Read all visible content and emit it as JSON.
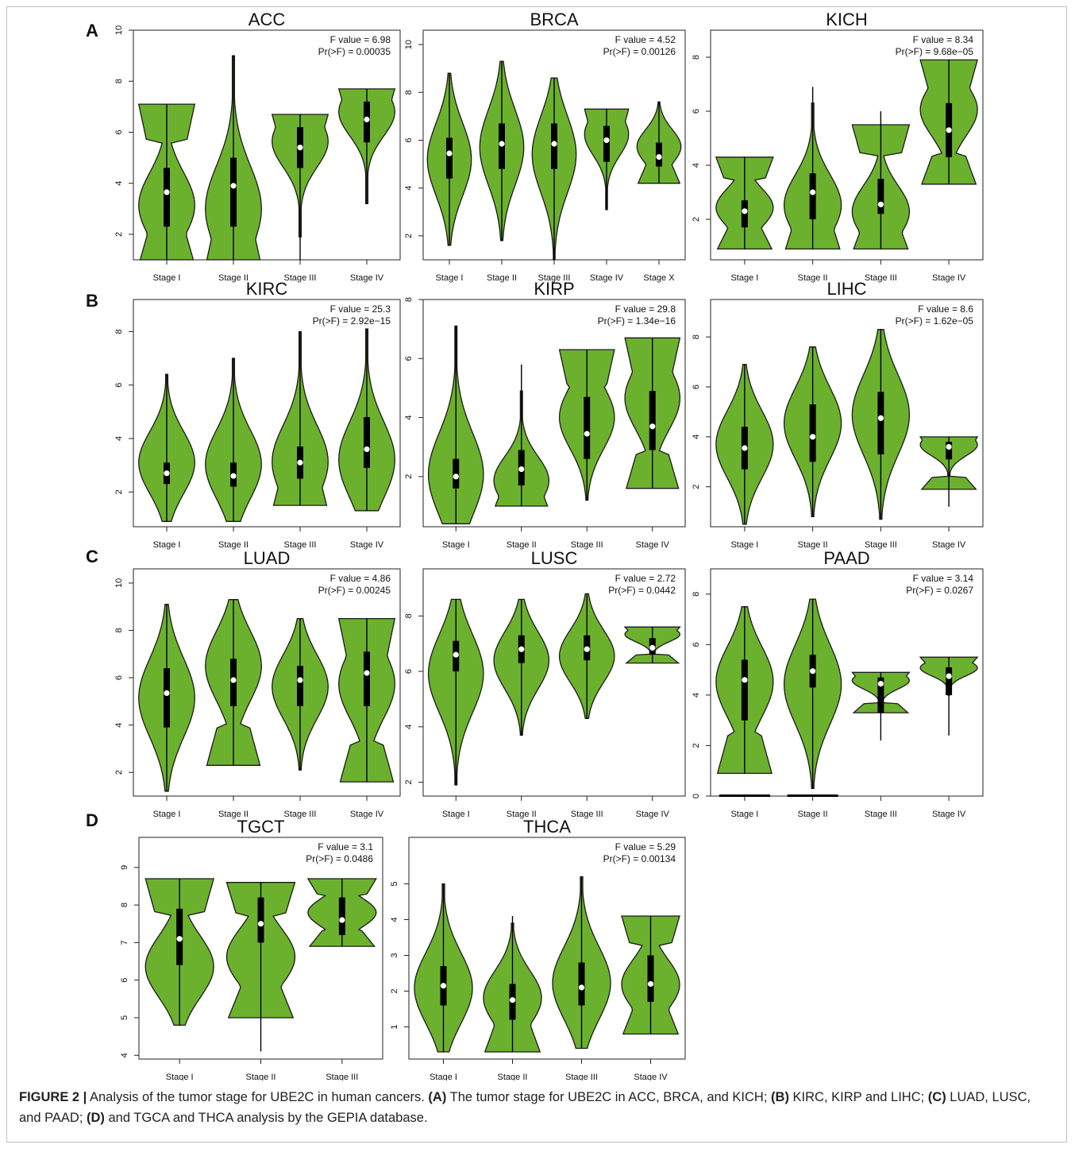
{
  "panel_letters": [
    "A",
    "B",
    "C",
    "D"
  ],
  "caption": {
    "lead": "FIGURE 2 |",
    "text": [
      " Analysis of the tumor stage for UBE2C in human cancers. ",
      "(A)",
      " The tumor stage for UBE2C in ACC, BRCA, and KICH; ",
      "(B)",
      " KIRC, KIRP and LIHC; ",
      "(C)",
      " LUAD, LUSC, and PAAD; ",
      "(D)",
      " and TGCA and THCA analysis by the GEPIA database."
    ]
  },
  "colors": {
    "violin_fill": "#6cb12e",
    "violin_stroke": "#1a1a1a",
    "box": "#000000",
    "median": "#ffffff"
  },
  "chart_data": [
    {
      "type": "violin",
      "title": "ACC",
      "f_text": "F value = 6.98",
      "p_text": "Pr(>F) = 0.00035",
      "ylim": [
        1,
        10
      ],
      "yticks": [
        2,
        4,
        6,
        8,
        10
      ],
      "categories": [
        "Stage I",
        "Stage II",
        "Stage III",
        "Stage IV"
      ],
      "violins": [
        {
          "min": 1.0,
          "max": 7.1,
          "q1": 2.3,
          "q3": 4.6,
          "median": 3.65,
          "flat_top": true,
          "flat_bottom": true,
          "peak": 0.35,
          "wmin": 1.0,
          "wmax": 7.1
        },
        {
          "min": 1.0,
          "max": 9.0,
          "q1": 2.3,
          "q3": 5.0,
          "median": 3.9,
          "flat_top": false,
          "flat_bottom": true,
          "peak": 0.25,
          "wmin": 1.0,
          "wmax": 9.0
        },
        {
          "min": 1.0,
          "max": 6.7,
          "q1": 4.6,
          "q3": 6.2,
          "median": 5.4,
          "flat_top": true,
          "flat_bottom": false,
          "peak": 0.78,
          "wmin": 1.9,
          "wmax": 6.7
        },
        {
          "min": 3.2,
          "max": 7.7,
          "q1": 5.6,
          "q3": 7.2,
          "median": 6.5,
          "flat_top": true,
          "flat_bottom": false,
          "peak": 0.8,
          "wmin": 3.2,
          "wmax": 7.7
        }
      ]
    },
    {
      "type": "violin",
      "title": "BRCA",
      "f_text": "F value = 4.52",
      "p_text": "Pr(>F) = 0.00126",
      "ylim": [
        1,
        10.6
      ],
      "yticks": [
        2,
        4,
        6,
        8,
        10
      ],
      "categories": [
        "Stage I",
        "Stage II",
        "Stage III",
        "Stage IV",
        "Stage X"
      ],
      "violins": [
        {
          "min": 1.6,
          "max": 8.8,
          "q1": 4.4,
          "q3": 6.1,
          "median": 5.45,
          "flat_top": false,
          "flat_bottom": false,
          "peak": 0.5,
          "wmin": 1.6,
          "wmax": 8.8
        },
        {
          "min": 1.8,
          "max": 9.3,
          "q1": 4.8,
          "q3": 6.7,
          "median": 5.85,
          "flat_top": false,
          "flat_bottom": false,
          "peak": 0.52,
          "wmin": 1.8,
          "wmax": 9.3
        },
        {
          "min": 1.0,
          "max": 8.6,
          "q1": 4.8,
          "q3": 6.7,
          "median": 5.85,
          "flat_top": false,
          "flat_bottom": false,
          "peak": 0.58,
          "wmin": 1.0,
          "wmax": 8.6
        },
        {
          "min": 3.1,
          "max": 7.3,
          "q1": 5.1,
          "q3": 6.6,
          "median": 6.0,
          "flat_top": true,
          "flat_bottom": false,
          "peak": 0.75,
          "wmin": 3.1,
          "wmax": 7.3
        },
        {
          "min": 4.2,
          "max": 7.6,
          "q1": 4.9,
          "q3": 5.9,
          "median": 5.3,
          "flat_top": false,
          "flat_bottom": true,
          "peak": 0.45,
          "wmin": 4.2,
          "wmax": 7.6
        }
      ]
    },
    {
      "type": "violin",
      "title": "KICH",
      "f_text": "F value = 8.34",
      "p_text": "Pr(>F) = 9.68e−05",
      "ylim": [
        0.5,
        9
      ],
      "yticks": [
        2,
        4,
        6,
        8
      ],
      "categories": [
        "Stage I",
        "Stage II",
        "Stage III",
        "Stage IV"
      ],
      "violins": [
        {
          "min": 0.9,
          "max": 4.3,
          "q1": 1.7,
          "q3": 2.7,
          "median": 2.3,
          "flat_top": true,
          "flat_bottom": true,
          "peak": 0.45,
          "wmin": 0.9,
          "wmax": 4.3
        },
        {
          "min": 0.9,
          "max": 6.9,
          "q1": 2.0,
          "q3": 3.7,
          "median": 3.0,
          "flat_top": false,
          "flat_bottom": true,
          "peak": 0.3,
          "wmin": 0.9,
          "wmax": 6.3
        },
        {
          "min": 0.9,
          "max": 6.0,
          "q1": 2.2,
          "q3": 3.5,
          "median": 2.55,
          "flat_top": true,
          "flat_bottom": true,
          "peak": 0.3,
          "wmin": 0.9,
          "wmax": 5.5
        },
        {
          "min": 3.3,
          "max": 7.9,
          "q1": 4.3,
          "q3": 6.3,
          "median": 5.3,
          "flat_top": true,
          "flat_bottom": true,
          "peak": 0.6,
          "wmin": 3.3,
          "wmax": 7.9
        }
      ]
    },
    {
      "type": "violin",
      "title": "KIRC",
      "f_text": "F value = 25.3",
      "p_text": "Pr(>F) = 2.92e−15",
      "ylim": [
        0.7,
        9.2
      ],
      "yticks": [
        2,
        4,
        6,
        8
      ],
      "categories": [
        "Stage I",
        "Stage II",
        "Stage III",
        "Stage IV"
      ],
      "violins": [
        {
          "min": 0.9,
          "max": 6.4,
          "q1": 2.3,
          "q3": 3.1,
          "median": 2.7,
          "flat_top": false,
          "flat_bottom": false,
          "peak": 0.4,
          "wmin": 0.9,
          "wmax": 6.4
        },
        {
          "min": 0.9,
          "max": 7.0,
          "q1": 2.2,
          "q3": 3.1,
          "median": 2.6,
          "flat_top": false,
          "flat_bottom": false,
          "peak": 0.35,
          "wmin": 0.9,
          "wmax": 7.0
        },
        {
          "min": 1.5,
          "max": 8.0,
          "q1": 2.5,
          "q3": 3.7,
          "median": 3.1,
          "flat_top": false,
          "flat_bottom": true,
          "peak": 0.25,
          "wmin": 1.5,
          "wmax": 8.0
        },
        {
          "min": 1.3,
          "max": 8.1,
          "q1": 2.9,
          "q3": 4.8,
          "median": 3.6,
          "flat_top": false,
          "flat_bottom": false,
          "peak": 0.28,
          "wmin": 1.3,
          "wmax": 8.1
        }
      ]
    },
    {
      "type": "violin",
      "title": "KIRP",
      "f_text": "F value = 29.8",
      "p_text": "Pr(>F) = 1.34e−16",
      "ylim": [
        0.3,
        8
      ],
      "yticks": [
        2,
        4,
        6,
        8
      ],
      "categories": [
        "Stage I",
        "Stage II",
        "Stage III",
        "Stage IV"
      ],
      "violins": [
        {
          "min": 0.4,
          "max": 7.1,
          "q1": 1.6,
          "q3": 2.6,
          "median": 2.0,
          "flat_top": false,
          "flat_bottom": false,
          "peak": 0.25,
          "wmin": 0.4,
          "wmax": 7.1
        },
        {
          "min": 1.0,
          "max": 5.8,
          "q1": 1.7,
          "q3": 2.9,
          "median": 2.25,
          "flat_top": false,
          "flat_bottom": true,
          "peak": 0.22,
          "wmin": 1.0,
          "wmax": 4.9
        },
        {
          "min": 1.2,
          "max": 6.3,
          "q1": 2.6,
          "q3": 4.7,
          "median": 3.45,
          "flat_top": true,
          "flat_bottom": false,
          "peak": 0.55,
          "wmin": 1.2,
          "wmax": 6.3
        },
        {
          "min": 1.6,
          "max": 6.7,
          "q1": 2.9,
          "q3": 4.9,
          "median": 3.7,
          "flat_top": true,
          "flat_bottom": true,
          "peak": 0.6,
          "wmin": 1.6,
          "wmax": 6.7
        }
      ]
    },
    {
      "type": "violin",
      "title": "LIHC",
      "f_text": "F value = 8.6",
      "p_text": "Pr(>F) = 1.62e−05",
      "ylim": [
        0.4,
        9.5
      ],
      "yticks": [
        2,
        4,
        6,
        8
      ],
      "categories": [
        "Stage I",
        "Stage II",
        "Stage III",
        "Stage IV"
      ],
      "violins": [
        {
          "min": 0.5,
          "max": 6.9,
          "q1": 2.7,
          "q3": 4.4,
          "median": 3.55,
          "flat_top": false,
          "flat_bottom": false,
          "peak": 0.5,
          "wmin": 0.5,
          "wmax": 6.9
        },
        {
          "min": 0.8,
          "max": 7.6,
          "q1": 3.0,
          "q3": 5.3,
          "median": 4.0,
          "flat_top": false,
          "flat_bottom": false,
          "peak": 0.55,
          "wmin": 0.8,
          "wmax": 7.6
        },
        {
          "min": 0.7,
          "max": 8.3,
          "q1": 3.3,
          "q3": 5.8,
          "median": 4.75,
          "flat_top": false,
          "flat_bottom": false,
          "peak": 0.55,
          "wmin": 0.7,
          "wmax": 8.3
        },
        {
          "min": 1.2,
          "max": 4.0,
          "q1": 3.1,
          "q3": 3.8,
          "median": 3.6,
          "flat_top": true,
          "flat_bottom": true,
          "peak": 0.85,
          "wmin": 1.9,
          "wmax": 4.0
        }
      ]
    },
    {
      "type": "violin",
      "title": "LUAD",
      "f_text": "F value = 4.86",
      "p_text": "Pr(>F) = 0.00245",
      "ylim": [
        1,
        10.6
      ],
      "yticks": [
        2,
        4,
        6,
        8,
        10
      ],
      "categories": [
        "Stage I",
        "Stage II",
        "Stage III",
        "Stage IV"
      ],
      "violins": [
        {
          "min": 1.2,
          "max": 9.1,
          "q1": 3.9,
          "q3": 6.4,
          "median": 5.35,
          "flat_top": false,
          "flat_bottom": false,
          "peak": 0.5,
          "wmin": 1.2,
          "wmax": 9.1
        },
        {
          "min": 2.3,
          "max": 9.3,
          "q1": 4.8,
          "q3": 6.8,
          "median": 5.9,
          "flat_top": false,
          "flat_bottom": true,
          "peak": 0.6,
          "wmin": 2.3,
          "wmax": 9.3
        },
        {
          "min": 2.1,
          "max": 8.5,
          "q1": 4.8,
          "q3": 6.5,
          "median": 5.9,
          "flat_top": false,
          "flat_bottom": false,
          "peak": 0.55,
          "wmin": 2.1,
          "wmax": 8.5
        },
        {
          "min": 1.6,
          "max": 8.5,
          "q1": 4.8,
          "q3": 7.1,
          "median": 6.2,
          "flat_top": true,
          "flat_bottom": true,
          "peak": 0.6,
          "wmin": 1.6,
          "wmax": 8.5
        }
      ]
    },
    {
      "type": "violin",
      "title": "LUSC",
      "f_text": "F value = 2.72",
      "p_text": "Pr(>F) = 0.0442",
      "ylim": [
        1.5,
        9.7
      ],
      "yticks": [
        2,
        4,
        6,
        8
      ],
      "categories": [
        "Stage I",
        "Stage II",
        "Stage III",
        "Stage IV"
      ],
      "violins": [
        {
          "min": 1.9,
          "max": 8.6,
          "q1": 6.0,
          "q3": 7.1,
          "median": 6.6,
          "flat_top": false,
          "flat_bottom": false,
          "peak": 0.6,
          "wmin": 1.9,
          "wmax": 8.6
        },
        {
          "min": 3.7,
          "max": 8.6,
          "q1": 6.3,
          "q3": 7.3,
          "median": 6.8,
          "flat_top": false,
          "flat_bottom": false,
          "peak": 0.55,
          "wmin": 3.7,
          "wmax": 8.6
        },
        {
          "min": 4.3,
          "max": 8.8,
          "q1": 6.4,
          "q3": 7.3,
          "median": 6.8,
          "flat_top": false,
          "flat_bottom": false,
          "peak": 0.5,
          "wmin": 4.3,
          "wmax": 8.8
        },
        {
          "min": 6.3,
          "max": 7.6,
          "q1": 6.6,
          "q3": 7.2,
          "median": 6.85,
          "flat_top": true,
          "flat_bottom": true,
          "peak": 0.8,
          "wmin": 6.3,
          "wmax": 7.6
        }
      ]
    },
    {
      "type": "violin",
      "title": "PAAD",
      "f_text": "F value = 3.14",
      "p_text": "Pr(>F) = 0.0267",
      "ylim": [
        0,
        9
      ],
      "yticks": [
        0,
        2,
        4,
        6,
        8
      ],
      "categories": [
        "Stage I",
        "Stage II",
        "Stage III",
        "Stage IV"
      ],
      "violins": [
        {
          "min": 0.9,
          "max": 7.5,
          "q1": 3.0,
          "q3": 5.4,
          "median": 4.6,
          "flat_top": false,
          "flat_bottom": true,
          "peak": 0.55,
          "wmin": 0.9,
          "wmax": 7.5,
          "zero_bar": true
        },
        {
          "min": 0.3,
          "max": 7.8,
          "q1": 4.3,
          "q3": 5.6,
          "median": 4.95,
          "flat_top": false,
          "flat_bottom": false,
          "peak": 0.55,
          "wmin": 0.3,
          "wmax": 7.8,
          "zero_bar": true
        },
        {
          "min": 2.2,
          "max": 4.9,
          "q1": 3.3,
          "q3": 4.7,
          "median": 4.45,
          "flat_top": true,
          "flat_bottom": true,
          "peak": 0.8,
          "wmin": 3.3,
          "wmax": 4.9
        },
        {
          "min": 2.4,
          "max": 5.5,
          "q1": 4.0,
          "q3": 5.1,
          "median": 4.75,
          "flat_top": true,
          "flat_bottom": false,
          "peak": 0.72,
          "wmin": 4.0,
          "wmax": 5.5
        }
      ]
    },
    {
      "type": "violin",
      "title": "TGCT",
      "f_text": "F value = 3.1",
      "p_text": "Pr(>F) = 0.0486",
      "ylim": [
        3.9,
        9.8
      ],
      "yticks": [
        4,
        5,
        6,
        7,
        8,
        9
      ],
      "categories": [
        "Stage I",
        "Stage II",
        "Stage III"
      ],
      "violins": [
        {
          "min": 4.8,
          "max": 8.7,
          "q1": 6.4,
          "q3": 7.9,
          "median": 7.1,
          "flat_top": true,
          "flat_bottom": false,
          "peak": 0.4,
          "wmin": 4.8,
          "wmax": 8.7
        },
        {
          "min": 4.1,
          "max": 8.6,
          "q1": 7.0,
          "q3": 8.2,
          "median": 7.5,
          "flat_top": true,
          "flat_bottom": true,
          "peak": 0.45,
          "wmin": 5.0,
          "wmax": 8.6
        },
        {
          "min": 6.9,
          "max": 8.7,
          "q1": 7.2,
          "q3": 8.2,
          "median": 7.6,
          "flat_top": true,
          "flat_bottom": true,
          "peak": 0.5,
          "wmin": 6.9,
          "wmax": 8.7
        }
      ]
    },
    {
      "type": "violin",
      "title": "THCA",
      "f_text": "F value = 5.29",
      "p_text": "Pr(>F) = 0.00134",
      "ylim": [
        0.1,
        6.3
      ],
      "yticks": [
        1,
        2,
        3,
        4,
        5
      ],
      "categories": [
        "Stage I",
        "Stage II",
        "Stage III",
        "Stage IV"
      ],
      "violins": [
        {
          "min": 0.3,
          "max": 5.0,
          "q1": 1.6,
          "q3": 2.7,
          "median": 2.15,
          "flat_top": false,
          "flat_bottom": false,
          "peak": 0.38,
          "wmin": 0.3,
          "wmax": 5.0
        },
        {
          "min": 0.3,
          "max": 4.1,
          "q1": 1.2,
          "q3": 2.2,
          "median": 1.75,
          "flat_top": false,
          "flat_bottom": true,
          "peak": 0.42,
          "wmin": 0.3,
          "wmax": 3.9
        },
        {
          "min": 0.4,
          "max": 5.2,
          "q1": 1.6,
          "q3": 2.8,
          "median": 2.1,
          "flat_top": false,
          "flat_bottom": false,
          "peak": 0.38,
          "wmin": 0.4,
          "wmax": 5.2
        },
        {
          "min": 0.8,
          "max": 4.1,
          "q1": 1.7,
          "q3": 3.0,
          "median": 2.2,
          "flat_top": true,
          "flat_bottom": true,
          "peak": 0.42,
          "wmin": 0.8,
          "wmax": 4.1
        }
      ]
    }
  ]
}
